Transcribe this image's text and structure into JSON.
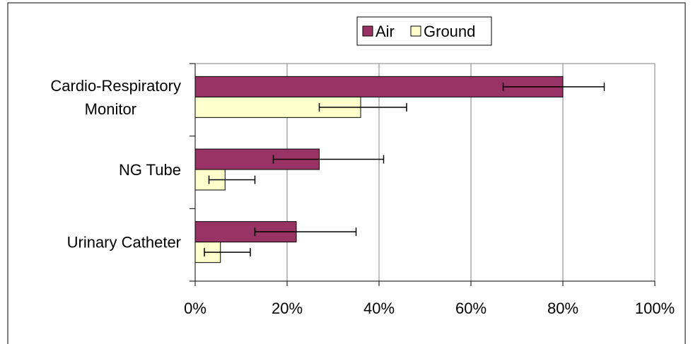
{
  "chart_data": {
    "type": "bar",
    "orientation": "horizontal",
    "title": "",
    "xlabel": "",
    "ylabel": "",
    "categories": [
      [
        "Cardio-Respiratory",
        "Monitor"
      ],
      [
        "NG Tube"
      ],
      [
        "Urinary Catheter"
      ]
    ],
    "series": [
      {
        "name": "Air",
        "color": "#993366",
        "values": [
          0.8,
          0.27,
          0.22
        ],
        "error_low": [
          0.67,
          0.17,
          0.13
        ],
        "error_high": [
          0.89,
          0.41,
          0.35
        ]
      },
      {
        "name": "Ground",
        "color": "#FFFFCC",
        "values": [
          0.36,
          0.065,
          0.055
        ],
        "error_low": [
          0.27,
          0.03,
          0.02
        ],
        "error_high": [
          0.46,
          0.13,
          0.12
        ]
      }
    ],
    "xlim": [
      0,
      1
    ],
    "xticks": [
      "0%",
      "20%",
      "40%",
      "60%",
      "80%",
      "100%"
    ],
    "grid": "vertical",
    "legend": "top-center"
  }
}
